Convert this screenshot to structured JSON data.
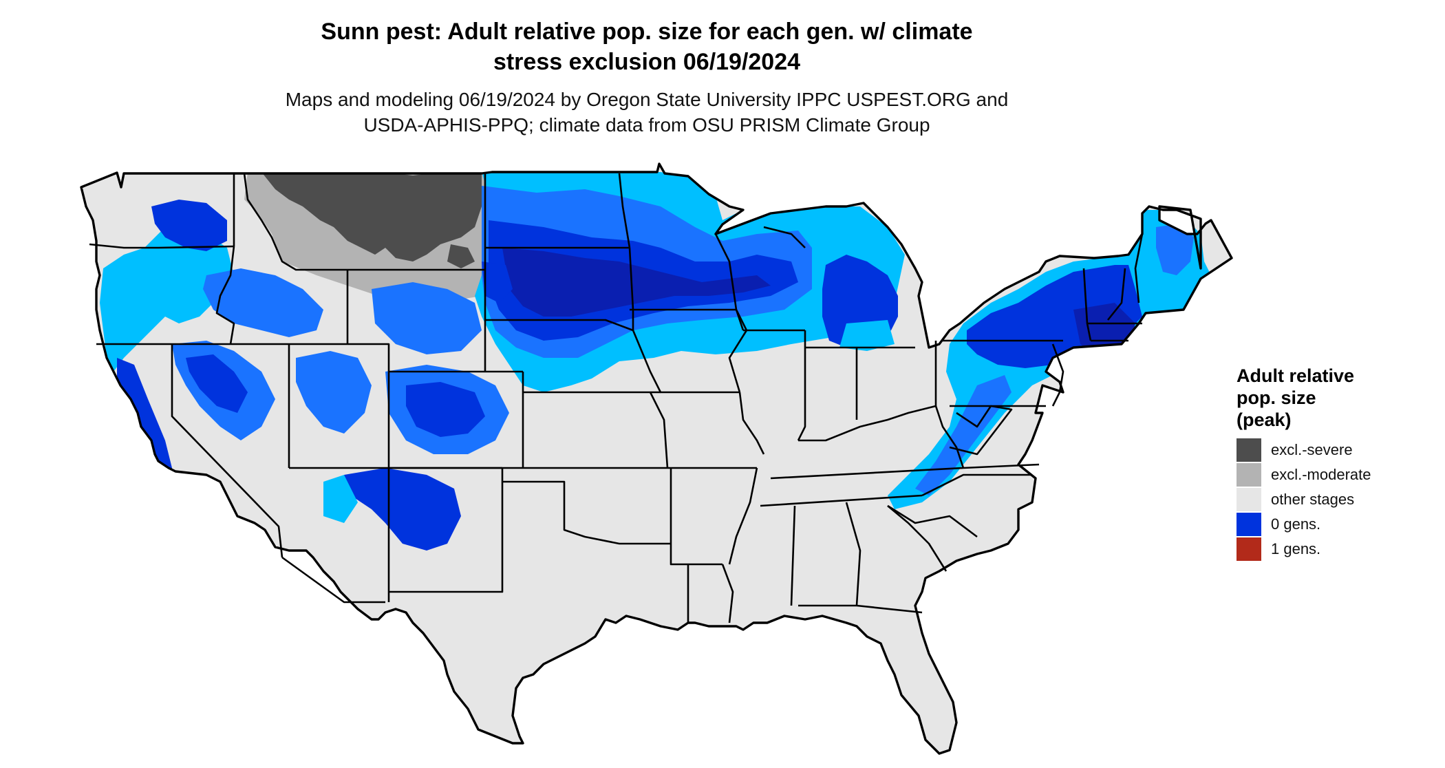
{
  "map": {
    "title_line1": "Sunn pest: Adult relative pop. size for each gen. w/ climate",
    "title_line2": "stress exclusion 06/19/2024",
    "subtitle_line1": "Maps and modeling 06/19/2024 by Oregon State University IPPC USPEST.ORG and",
    "subtitle_line2": "USDA-APHIS-PPQ; climate data from OSU PRISM Climate Group",
    "region": "Contiguous United States"
  },
  "legend": {
    "title_line1": "Adult relative",
    "title_line2": "pop. size",
    "title_line3": "(peak)",
    "items": [
      {
        "label": "excl.-severe",
        "color": "#4d4d4d"
      },
      {
        "label": "excl.-moderate",
        "color": "#b3b3b3"
      },
      {
        "label": "other stages",
        "color": "#e6e6e6"
      },
      {
        "label": "0 gens.",
        "color": "#0033dd"
      },
      {
        "label": "1 gens.",
        "color": "#b22a1a"
      }
    ]
  },
  "colors": {
    "background": "#ffffff",
    "land_other": "#e6e6e6",
    "excl_severe": "#4d4d4d",
    "excl_moderate": "#b3b3b3",
    "gen0_light": "#00bfff",
    "gen0_mid": "#1a73ff",
    "gen0_dark": "#0033dd",
    "gen0_deep": "#0a1fb0",
    "border": "#000000"
  }
}
